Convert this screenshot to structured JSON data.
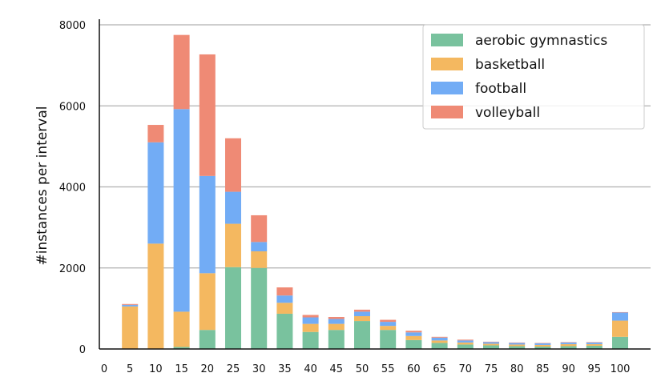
{
  "chart_data": {
    "type": "bar",
    "stacked": true,
    "title": "",
    "xlabel": "",
    "ylabel": "#instances per interval",
    "ylim": [
      0,
      8000
    ],
    "y_ticks": [
      0,
      2000,
      4000,
      6000,
      8000
    ],
    "x_tick_labels": [
      "0",
      "5",
      "10",
      "15",
      "20",
      "25",
      "30",
      "35",
      "40",
      "45",
      "50",
      "55",
      "60",
      "65",
      "70",
      "75",
      "80",
      "85",
      "90",
      "95",
      "100"
    ],
    "categories": [
      "5",
      "10",
      "15",
      "20",
      "25",
      "30",
      "35",
      "40",
      "45",
      "50",
      "55",
      "60",
      "65",
      "70",
      "75",
      "80",
      "85",
      "90",
      "95",
      "100"
    ],
    "grid": "horizontal",
    "legend_position": "top-right",
    "series": [
      {
        "name": "aerobic gymnastics",
        "color": "#79c29e",
        "values": [
          0,
          0,
          50,
          470,
          2020,
          2000,
          870,
          420,
          470,
          690,
          470,
          220,
          150,
          110,
          90,
          70,
          60,
          70,
          80,
          300
        ]
      },
      {
        "name": "basketball",
        "color": "#f4b860",
        "values": [
          1050,
          2600,
          870,
          1400,
          1070,
          410,
          270,
          200,
          150,
          120,
          100,
          100,
          60,
          50,
          40,
          40,
          40,
          50,
          40,
          400
        ]
      },
      {
        "name": "football",
        "color": "#72acf5",
        "values": [
          40,
          2500,
          5000,
          2400,
          790,
          230,
          180,
          160,
          120,
          110,
          100,
          90,
          70,
          50,
          40,
          40,
          40,
          40,
          40,
          200
        ]
      },
      {
        "name": "volleyball",
        "color": "#ef8a75",
        "values": [
          20,
          430,
          1830,
          3000,
          1320,
          660,
          200,
          60,
          50,
          50,
          50,
          40,
          20,
          20,
          10,
          10,
          10,
          10,
          10,
          10
        ]
      }
    ]
  }
}
